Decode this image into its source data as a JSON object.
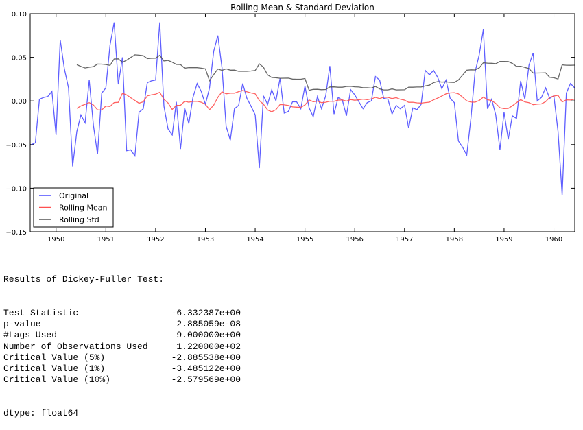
{
  "chart_data": {
    "type": "line",
    "title": "Rolling Mean & Standard Deviation",
    "xlabel": "",
    "ylabel": "",
    "xlim": [
      1949.48,
      1960.42
    ],
    "ylim": [
      -0.15,
      0.1
    ],
    "x_tick_labels": [
      "1950",
      "1951",
      "1952",
      "1953",
      "1954",
      "1955",
      "1956",
      "1957",
      "1958",
      "1959",
      "1960"
    ],
    "y_tick_labels": [
      "0.10",
      "0.05",
      "0.00",
      "−0.05",
      "−0.10",
      "−0.15"
    ],
    "grid": false,
    "legend_placement": "lower-left",
    "x_start": "1949-07",
    "frequency": "monthly",
    "series": [
      {
        "name": "Original",
        "color": "#4d4dff",
        "values": [
          -0.05,
          -0.048,
          0.002,
          0.004,
          0.005,
          0.011,
          -0.039,
          0.07,
          0.037,
          0.015,
          -0.075,
          -0.035,
          -0.016,
          -0.025,
          0.024,
          -0.028,
          -0.061,
          0.009,
          0.015,
          0.064,
          0.09,
          0.019,
          0.05,
          -0.057,
          -0.056,
          -0.063,
          -0.013,
          -0.009,
          0.021,
          0.023,
          0.024,
          0.09,
          -0.006,
          -0.032,
          -0.039,
          -0.001,
          -0.055,
          -0.008,
          -0.026,
          0.004,
          0.02,
          0.011,
          -0.004,
          0.015,
          0.057,
          0.075,
          0.038,
          -0.029,
          -0.045,
          -0.009,
          -0.005,
          0.02,
          0.003,
          -0.006,
          -0.016,
          -0.077,
          0.006,
          -0.004,
          0.013,
          0.0,
          0.026,
          -0.014,
          -0.012,
          -0.001,
          -0.001,
          -0.009,
          0.017,
          -0.008,
          -0.018,
          0.005,
          -0.009,
          0.006,
          0.04,
          -0.015,
          0.004,
          0.001,
          -0.017,
          0.013,
          0.007,
          -0.001,
          -0.009,
          -0.002,
          0.0,
          0.028,
          0.024,
          0.003,
          0.002,
          -0.015,
          -0.005,
          -0.009,
          -0.005,
          -0.031,
          -0.008,
          -0.01,
          -0.004,
          0.035,
          0.03,
          0.035,
          0.027,
          0.014,
          0.024,
          0.003,
          -0.002,
          -0.046,
          -0.053,
          -0.062,
          -0.02,
          0.033,
          0.053,
          0.082,
          -0.009,
          0.002,
          -0.016,
          -0.056,
          -0.013,
          -0.044,
          -0.017,
          -0.02,
          0.023,
          0.002,
          0.041,
          0.055,
          0.0,
          0.004,
          0.015,
          0.003,
          0.006,
          -0.035,
          -0.108,
          0.009,
          0.02,
          0.015
        ]
      },
      {
        "name": "Rolling Mean",
        "color": "#ff5050",
        "derived": "rolling mean of Original"
      },
      {
        "name": "Rolling Std",
        "color": "#555555",
        "derived": "rolling std of Original"
      }
    ]
  },
  "output": {
    "header": "Results of Dickey-Fuller Test:",
    "rows": [
      {
        "label": "Test Statistic",
        "value": "-6.332387e+00"
      },
      {
        "label": "p-value",
        "value": "2.885059e-08"
      },
      {
        "label": "#Lags Used",
        "value": "9.000000e+00"
      },
      {
        "label": "Number of Observations Used",
        "value": "1.220000e+02"
      },
      {
        "label": "Critical Value (5%)",
        "value": "-2.885538e+00"
      },
      {
        "label": "Critical Value (1%)",
        "value": "-3.485122e+00"
      },
      {
        "label": "Critical Value (10%)",
        "value": "-2.579569e+00"
      }
    ],
    "dtype": "dtype: float64"
  }
}
